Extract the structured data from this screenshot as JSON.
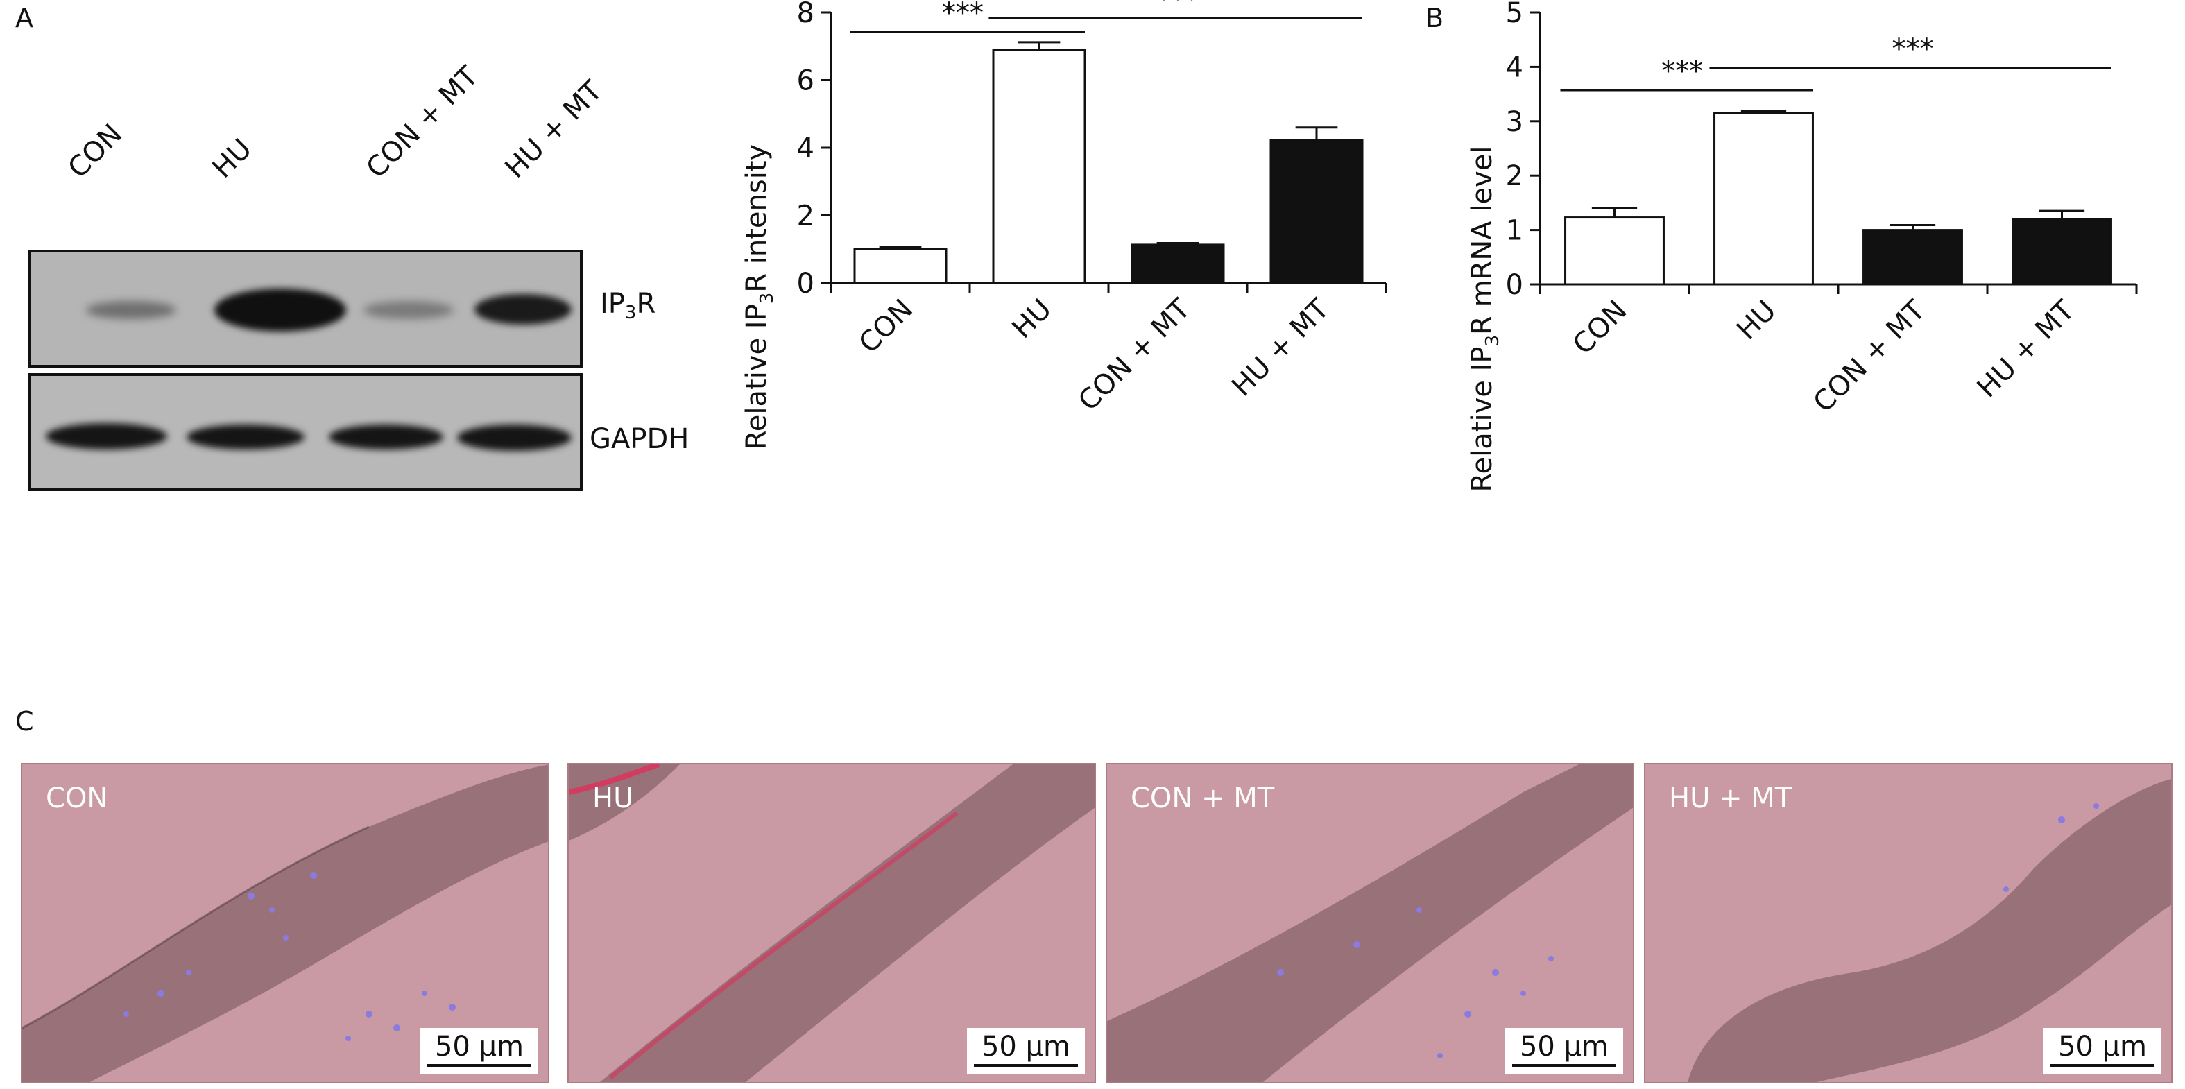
{
  "panel_letters": {
    "a": "A",
    "b": "B",
    "c": "C"
  },
  "blot": {
    "lanes": [
      "CON",
      "HU",
      "CON + MT",
      "HU + MT"
    ],
    "ip3r_label": {
      "main": "IP",
      "sub": "3",
      "rest": "R"
    },
    "gapdh_label": "GAPDH"
  },
  "sig_label": "***",
  "chart_data": [
    {
      "type": "bar",
      "categories": [
        "CON",
        "HU",
        "CON + MT",
        "HU + MT"
      ],
      "values": [
        1.0,
        6.9,
        1.13,
        4.22
      ],
      "errors": [
        0.06,
        0.22,
        0.05,
        0.38
      ],
      "fills": [
        "#ffffff",
        "#ffffff",
        "#111111",
        "#111111"
      ],
      "ylabel": {
        "pre": "Relative IP",
        "sub": "3",
        "post": "R intensity"
      },
      "ylim": [
        0,
        8
      ],
      "yticks": [
        0,
        2,
        4,
        6,
        8
      ],
      "significance": [
        {
          "from": 0,
          "to": 1,
          "label": "***"
        },
        {
          "from": 1,
          "to": 3,
          "label": "***"
        }
      ]
    },
    {
      "type": "bar",
      "categories": [
        "CON",
        "HU",
        "CON + MT",
        "HU + MT"
      ],
      "values": [
        1.23,
        3.15,
        1.0,
        1.2
      ],
      "errors": [
        0.17,
        0.04,
        0.09,
        0.15
      ],
      "fills": [
        "#ffffff",
        "#ffffff",
        "#111111",
        "#111111"
      ],
      "ylabel": {
        "pre": "Relative IP",
        "sub": "3",
        "post": "R mRNA level"
      },
      "ylim": [
        0,
        5
      ],
      "yticks": [
        0,
        1,
        2,
        3,
        4,
        5
      ],
      "significance": [
        {
          "from": 0,
          "to": 1,
          "label": "***"
        },
        {
          "from": 1,
          "to": 3,
          "label": "***"
        }
      ]
    }
  ],
  "micrographs": [
    {
      "label": "CON",
      "scale": "50 μm"
    },
    {
      "label": "HU",
      "scale": "50 μm"
    },
    {
      "label": "CON + MT",
      "scale": "50 μm"
    },
    {
      "label": "HU + MT",
      "scale": "50 μm"
    }
  ],
  "colors": {
    "tissue_bg": "#c99aa3",
    "tissue": "#8f6a72",
    "nuclei": "#8a7be0",
    "ip3r_stain": "#e0305a"
  }
}
